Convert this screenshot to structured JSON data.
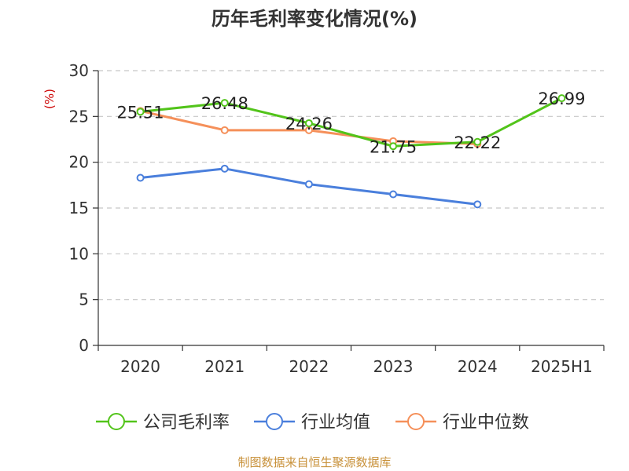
{
  "chart_data": {
    "type": "line",
    "title": "历年毛利率变化情况(%)",
    "unit_label": "(%)",
    "categories": [
      "2020",
      "2021",
      "2022",
      "2023",
      "2024",
      "2025H1"
    ],
    "ylim": [
      0,
      30
    ],
    "yticks": [
      0,
      5,
      10,
      15,
      20,
      25,
      30
    ],
    "grid": true,
    "legend_position": "bottom",
    "series": [
      {
        "name": "公司毛利率",
        "color": "#52c41a",
        "values": [
          25.51,
          26.48,
          24.26,
          21.75,
          22.22,
          26.99
        ],
        "labels": [
          "25.51",
          "26.48",
          "24.26",
          "21.75",
          "22.22",
          "26.99"
        ]
      },
      {
        "name": "行业均值",
        "color": "#4a7fdc",
        "values": [
          18.3,
          19.3,
          17.6,
          16.5,
          15.4,
          null
        ]
      },
      {
        "name": "行业中位数",
        "color": "#f5905a",
        "values": [
          25.6,
          23.5,
          23.5,
          22.3,
          22.0,
          null
        ]
      }
    ]
  },
  "footer": "制图数据来自恒生聚源数据库"
}
